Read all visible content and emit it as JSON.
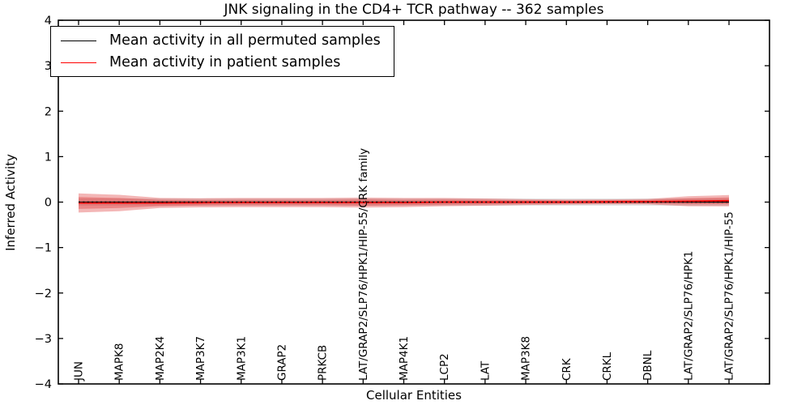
{
  "chart_data": {
    "type": "line",
    "title": "JNK signaling in the CD4+ TCR pathway -- 362 samples",
    "xlabel": "Cellular Entities",
    "ylabel": "Inferred Activity",
    "ylim": [
      -4,
      4
    ],
    "ytick_labels": [
      "4",
      "3",
      "2",
      "1",
      "0",
      "−1",
      "−2",
      "−3",
      "−4"
    ],
    "ytick_values": [
      4,
      3,
      2,
      1,
      0,
      -1,
      -2,
      -3,
      -4
    ],
    "grid": false,
    "legend_position": "upper left",
    "categories": [
      "JUN",
      "MAPK8",
      "MAP2K4",
      "MAP3K7",
      "MAP3K1",
      "GRAP2",
      "PRKCB",
      "LAT/GRAP2/SLP76/HPK1/HIP-55/CRK family",
      "MAP4K1",
      "LCP2",
      "LAT",
      "MAP3K8",
      "CRK",
      "CRKL",
      "DBNL",
      "LAT/GRAP2/SLP76/HPK1",
      "LAT/GRAP2/SLP76/HPK1/HIP-55"
    ],
    "series": [
      {
        "name": "Mean activity in all permuted samples",
        "color": "#000000",
        "style": "solid",
        "values": [
          0,
          0,
          0,
          0,
          0,
          0,
          0,
          0,
          0,
          0,
          0,
          0,
          0,
          0,
          0,
          0,
          0
        ]
      },
      {
        "name": "Mean activity in patient samples",
        "color": "#ff0000",
        "style": "solid",
        "values": [
          -0.02,
          -0.02,
          -0.02,
          -0.015,
          -0.01,
          -0.01,
          -0.01,
          -0.01,
          -0.01,
          0,
          0,
          0,
          0,
          0.005,
          0.01,
          0.02,
          0.03
        ]
      }
    ],
    "bands": [
      {
        "name": "permuted-samples-spread",
        "color": "rgba(0,0,0,0.10)",
        "center": "permuted",
        "half_widths": [
          0.08,
          0.08,
          0.08,
          0.08,
          0.08,
          0.08,
          0.08,
          0.08,
          0.08,
          0.08,
          0.08,
          0.08,
          0.08,
          0.08,
          0.08,
          0.08,
          0.08
        ]
      },
      {
        "name": "patient-samples-spread-outer",
        "color": "rgba(220,45,45,0.35)",
        "center": "patient",
        "half_widths": [
          0.21,
          0.18,
          0.11,
          0.1,
          0.1,
          0.1,
          0.1,
          0.11,
          0.1,
          0.09,
          0.08,
          0.065,
          0.055,
          0.055,
          0.06,
          0.11,
          0.125
        ]
      },
      {
        "name": "patient-samples-spread-inner",
        "color": "rgba(220,45,45,0.35)",
        "center": "patient",
        "half_widths": [
          0.13,
          0.11,
          0.07,
          0.06,
          0.06,
          0.06,
          0.06,
          0.07,
          0.06,
          0.055,
          0.05,
          0.04,
          0.035,
          0.035,
          0.04,
          0.065,
          0.075
        ]
      }
    ],
    "zero_line": {
      "style": "dotted",
      "color": "#000000",
      "value": 0
    }
  }
}
